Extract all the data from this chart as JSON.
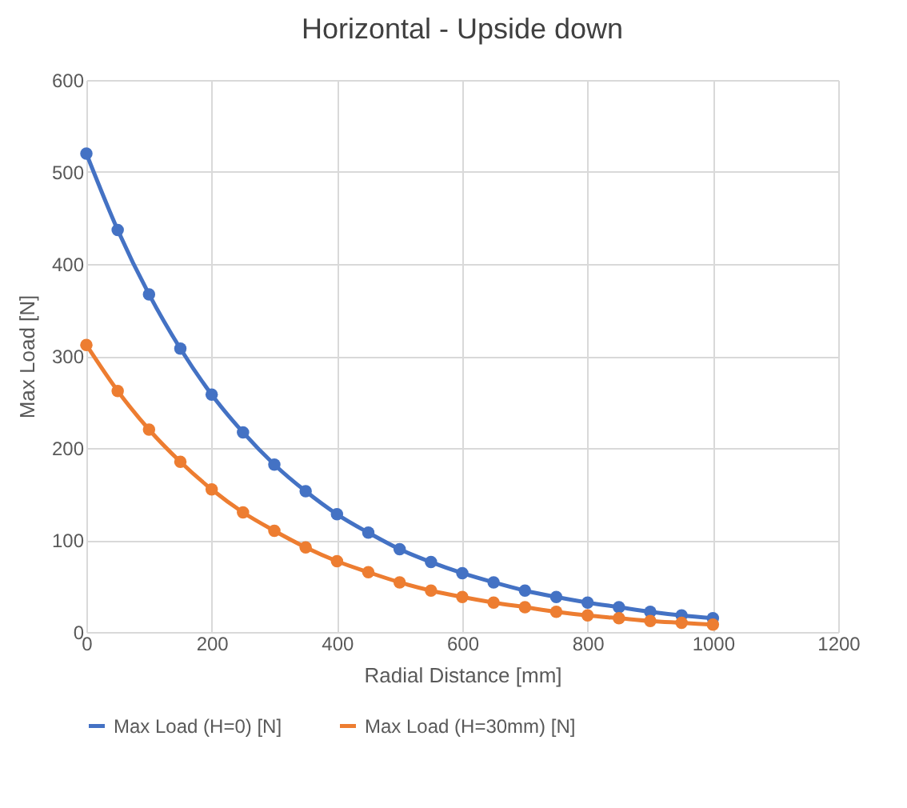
{
  "chart_data": {
    "type": "line",
    "title": "Horizontal - Upside down",
    "xlabel": "Radial Distance [mm]",
    "ylabel": "Max Load [N]",
    "x": [
      0,
      50,
      100,
      150,
      200,
      250,
      300,
      350,
      400,
      450,
      500,
      550,
      600,
      650,
      700,
      750,
      800,
      850,
      900,
      950,
      1000
    ],
    "series": [
      {
        "name": "Max Load (H=0) [N]",
        "color": "#4472c4",
        "values": [
          520,
          437,
          367,
          308,
          258,
          217,
          182,
          153,
          128,
          108,
          90,
          76,
          64,
          54,
          45,
          38,
          32,
          27,
          22,
          18,
          15
        ]
      },
      {
        "name": "Max Load (H=30mm) [N]",
        "color": "#ed7d31",
        "values": [
          312,
          262,
          220,
          185,
          155,
          130,
          110,
          92,
          77,
          65,
          54,
          45,
          38,
          32,
          27,
          22,
          18,
          15,
          12,
          10,
          8
        ]
      }
    ],
    "xlim": [
      0,
      1200
    ],
    "xticks": [
      0,
      200,
      400,
      600,
      800,
      1000,
      1200
    ],
    "ylim": [
      0,
      600
    ],
    "yticks": [
      0,
      100,
      200,
      300,
      400,
      500,
      600
    ],
    "grid": true,
    "legend": "bottom",
    "marker": "circle",
    "line_style": "solid"
  }
}
